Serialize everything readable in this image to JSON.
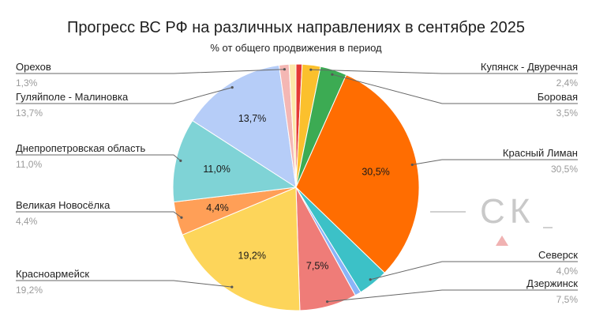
{
  "chart_data": {
    "type": "pie",
    "title": "Прогресс ВС РФ на различных направлениях в сентябре 2025",
    "subtitle": "% от общего продвижения в период",
    "legend": "labels-with-leader-lines",
    "slices": [
      {
        "label": "",
        "value": 0.8,
        "display": "",
        "color": "#e53935"
      },
      {
        "label": "Купянск - Двуречная",
        "value": 2.4,
        "display": "2,4%",
        "color": "#fbc02d"
      },
      {
        "label": "Боровая",
        "value": 3.5,
        "display": "3,5%",
        "color": "#3cab53"
      },
      {
        "label": "Красный Лиман",
        "value": 30.5,
        "display": "30,5%",
        "color": "#ff6d01"
      },
      {
        "label": "Северск",
        "value": 4.0,
        "display": "4,0%",
        "color": "#3cc1c7"
      },
      {
        "label": "",
        "value": 0.8,
        "display": "",
        "color": "#8ab4f8"
      },
      {
        "label": "Дзержинск",
        "value": 7.5,
        "display": "7,5%",
        "color": "#ef7c78"
      },
      {
        "label": "Красноармейск",
        "value": 19.2,
        "display": "19,2%",
        "color": "#fdd55a"
      },
      {
        "label": "Великая Новосёлка",
        "value": 4.4,
        "display": "4,4%",
        "color": "#ff9f57"
      },
      {
        "label": "Днепропетровская область",
        "value": 11.0,
        "display": "11,0%",
        "color": "#7fd3d6"
      },
      {
        "label": "Гуляйполе - Малиновка",
        "value": 13.7,
        "display": "13,7%",
        "color": "#b6cdf8"
      },
      {
        "label": "Орехов",
        "value": 1.3,
        "display": "1,3%",
        "color": "#f4b7b4"
      },
      {
        "label": "",
        "value": 0.9,
        "display": "",
        "color": "#fde7a8"
      }
    ]
  },
  "watermark": "СК"
}
